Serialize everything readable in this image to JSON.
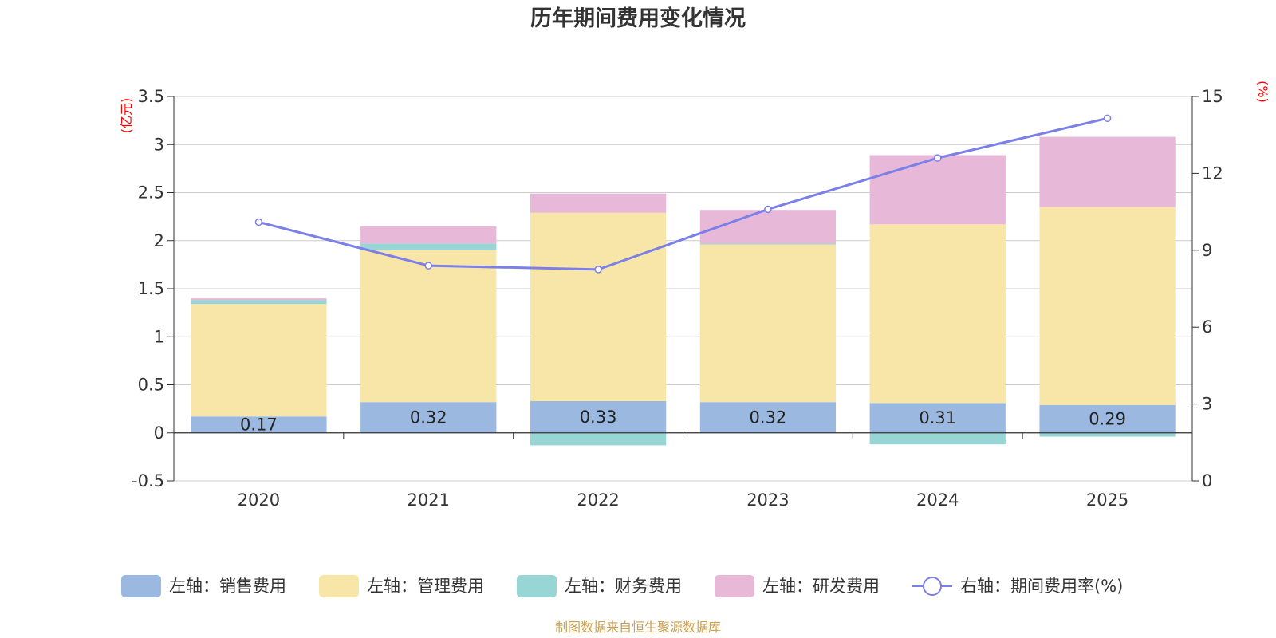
{
  "chart_data": {
    "type": "bar",
    "title": "历年期间费用变化情况",
    "categories": [
      "2020",
      "2021",
      "2022",
      "2023",
      "2024",
      "2025"
    ],
    "left_axis": {
      "unit": "(亿元)",
      "ylim": [
        -0.5,
        3.5
      ],
      "ticks": [
        -0.5,
        0,
        0.5,
        1,
        1.5,
        2,
        2.5,
        3,
        3.5
      ],
      "tick_labels": [
        "-0.5",
        "0",
        "0.5",
        "1",
        "1.5",
        "2",
        "2.5",
        "3",
        "3.5"
      ]
    },
    "right_axis": {
      "unit": "(%)",
      "ylim": [
        0,
        15
      ],
      "ticks": [
        0,
        3,
        6,
        9,
        12,
        15
      ],
      "tick_labels": [
        "0",
        "3",
        "6",
        "9",
        "12",
        "15"
      ]
    },
    "series": [
      {
        "name": "左轴：销售费用",
        "axis": "left",
        "type": "bar",
        "color": "#9bb8e0",
        "values": [
          0.17,
          0.32,
          0.33,
          0.32,
          0.31,
          0.29
        ],
        "labels": [
          "0.17",
          "0.32",
          "0.33",
          "0.32",
          "0.31",
          "0.29"
        ]
      },
      {
        "name": "左轴：管理费用",
        "axis": "left",
        "type": "bar",
        "color": "#f8e6a8",
        "values": [
          1.17,
          1.58,
          1.96,
          1.64,
          1.86,
          2.06
        ]
      },
      {
        "name": "左轴：财务费用",
        "axis": "left",
        "type": "bar",
        "color": "#98d5d5",
        "values": [
          0.04,
          0.07,
          -0.13,
          0.01,
          -0.12,
          -0.04
        ]
      },
      {
        "name": "左轴：研发费用",
        "axis": "left",
        "type": "bar",
        "color": "#e8b8d8",
        "values": [
          0.02,
          0.18,
          0.2,
          0.35,
          0.72,
          0.73
        ]
      },
      {
        "name": "右轴：期间费用率(%)",
        "axis": "right",
        "type": "line",
        "color": "#7b7fe8",
        "values": [
          10.1,
          8.4,
          8.25,
          10.6,
          12.6,
          14.15
        ]
      }
    ],
    "grid": true,
    "legend_position": "bottom"
  },
  "footer": {
    "source": "制图数据来自恒生聚源数据库"
  }
}
